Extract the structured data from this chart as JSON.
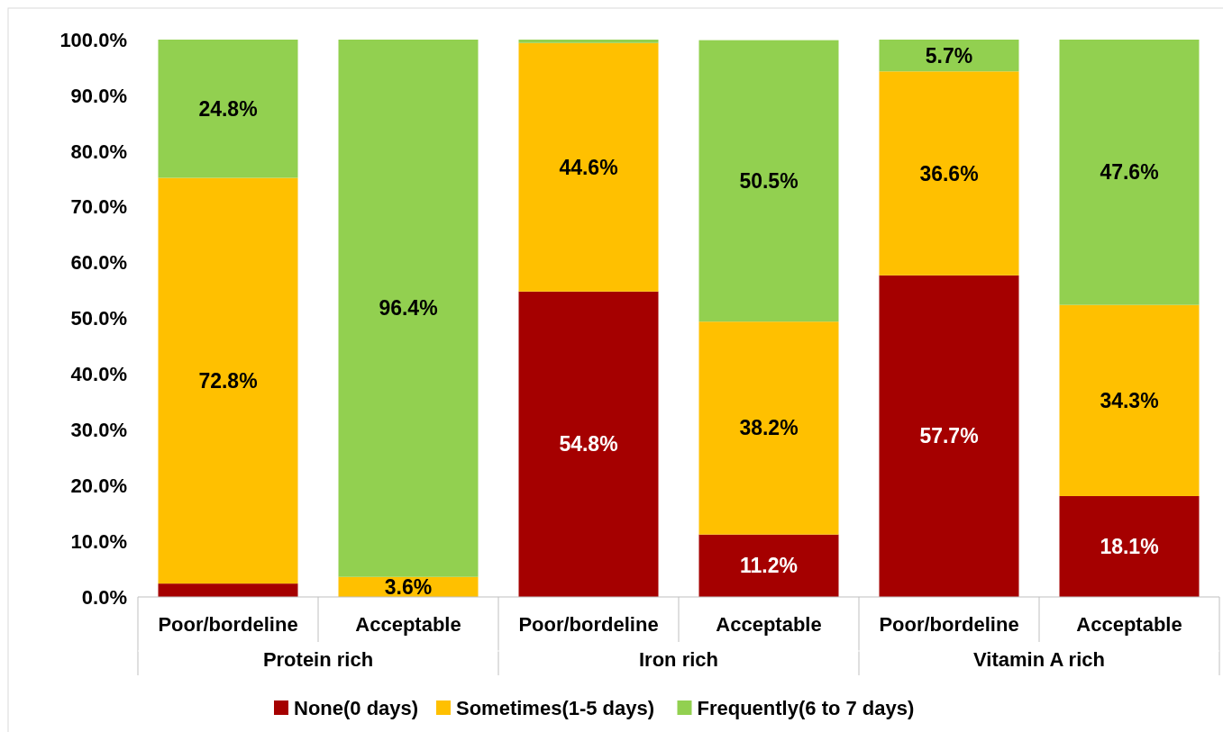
{
  "chart_data": {
    "type": "bar",
    "stacked": true,
    "categories": [
      "Poor/bordeline",
      "Acceptable",
      "Poor/bordeline",
      "Acceptable",
      "Poor/bordeline",
      "Acceptable"
    ],
    "annotations": [
      "Protein rich",
      "Iron rich",
      "Vitamin A rich"
    ],
    "series": [
      {
        "name": "None(0 days)",
        "color": "#a50000",
        "values": [
          2.4,
          0,
          54.8,
          11.2,
          57.7,
          18.1
        ],
        "value_labels": [
          null,
          null,
          "54.8%",
          "11.2%",
          "57.7%",
          "18.1%"
        ]
      },
      {
        "name": "Sometimes(1-5 days)",
        "color": "#ffc000",
        "values": [
          72.8,
          3.6,
          44.6,
          38.2,
          36.6,
          34.3
        ],
        "value_labels": [
          "72.8%",
          "3.6%",
          "44.6%",
          "38.2%",
          "36.6%",
          "34.3%"
        ]
      },
      {
        "name": "Frequently(6 to 7 days)",
        "color": "#92d050",
        "values": [
          24.8,
          96.4,
          0.6,
          50.5,
          5.7,
          47.6
        ],
        "value_labels": [
          "24.8%",
          "96.4%",
          null,
          "50.5%",
          "5.7%",
          "47.6%"
        ]
      }
    ],
    "ylim": [
      0,
      100
    ],
    "yticks": [
      {
        "value": 0,
        "label": "0.0%"
      },
      {
        "value": 10,
        "label": "10.0%"
      },
      {
        "value": 20,
        "label": "20.0%"
      },
      {
        "value": 30,
        "label": "30.0%"
      },
      {
        "value": 40,
        "label": "40.0%"
      },
      {
        "value": 50,
        "label": "50.0%"
      },
      {
        "value": 60,
        "label": "60.0%"
      },
      {
        "value": 70,
        "label": "70.0%"
      },
      {
        "value": 80,
        "label": "80.0%"
      },
      {
        "value": 90,
        "label": "90.0%"
      },
      {
        "value": 100,
        "label": "100.0%"
      }
    ],
    "legend": "bottom"
  }
}
